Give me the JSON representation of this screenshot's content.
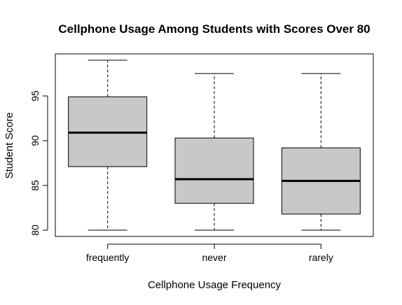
{
  "chart_data": {
    "type": "boxplot",
    "title": "Cellphone Usage Among Students with Scores Over 80",
    "xlabel": "Cellphone Usage Frequency",
    "ylabel": "Student Score",
    "ylim": [
      79.3,
      99.7
    ],
    "yticks": [
      "80",
      "85",
      "90",
      "95"
    ],
    "categories": [
      "frequently",
      "never",
      "rarely"
    ],
    "boxes": [
      {
        "category": "frequently",
        "min": 80.0,
        "q1": 87.1,
        "median": 90.9,
        "q3": 94.9,
        "max": 99.0
      },
      {
        "category": "never",
        "min": 80.0,
        "q1": 83.0,
        "median": 85.7,
        "q3": 90.3,
        "max": 97.5
      },
      {
        "category": "rarely",
        "min": 80.0,
        "q1": 81.8,
        "median": 85.5,
        "q3": 89.2,
        "max": 97.5
      }
    ],
    "box_fill": "#c8c8c8",
    "line_color": "#000000",
    "grid": false,
    "legend": "none"
  }
}
